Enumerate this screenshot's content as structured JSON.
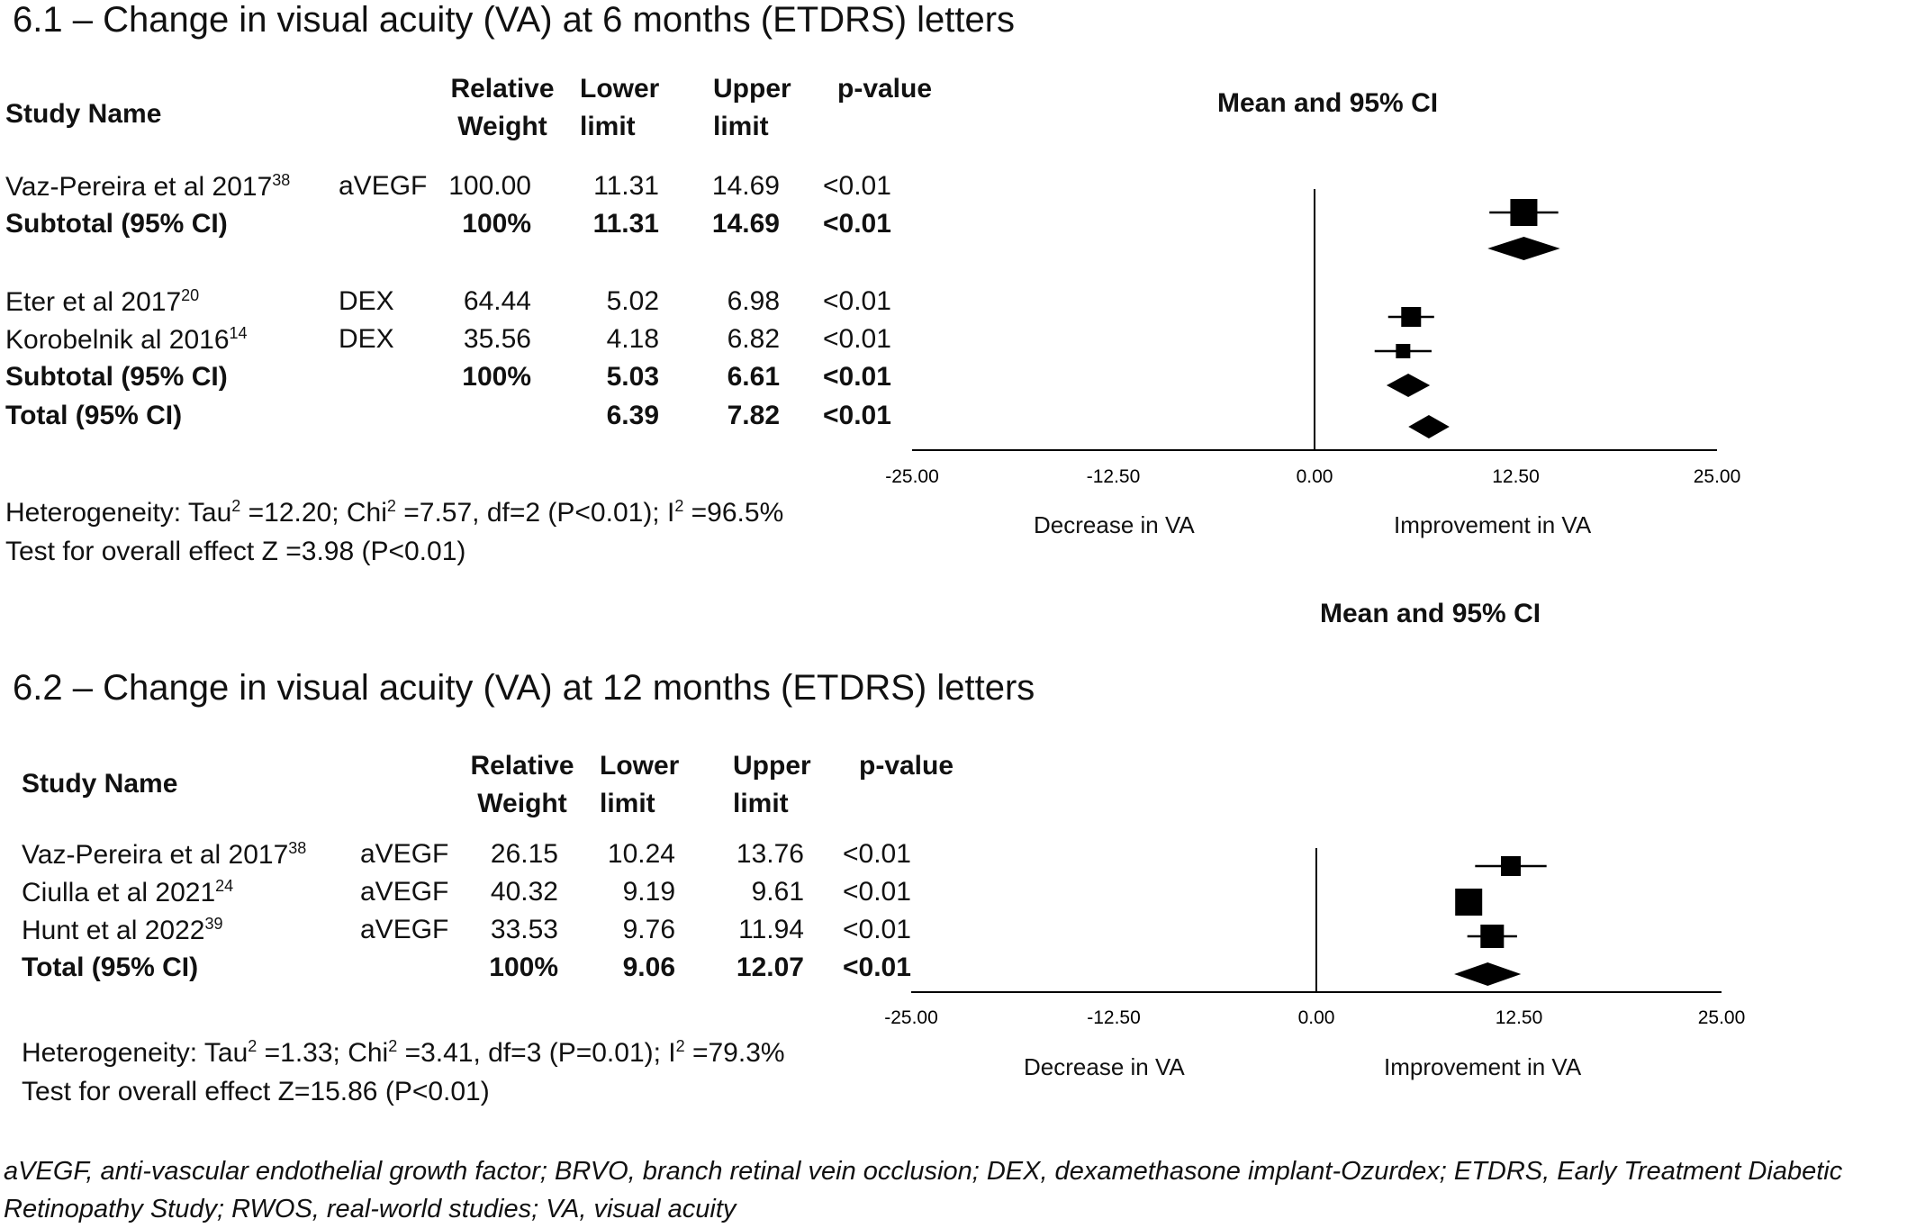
{
  "chart_data": [
    {
      "type": "forest",
      "title": "6.1 – Change in visual acuity (VA) at 6 months (ETDRS) letters",
      "plot_title": "Mean and 95% CI",
      "columns": {
        "study": "Study Name",
        "weight": [
          "Relative",
          "Weight"
        ],
        "lower": [
          "Lower",
          "limit"
        ],
        "upper": [
          "Upper",
          "limit"
        ],
        "p": "p-value"
      },
      "xlim": [
        -25,
        25
      ],
      "ticks": [
        "-25.00",
        "-12.50",
        "0.00",
        "12.50",
        "25.00"
      ],
      "tick_values": [
        -25,
        -12.5,
        0,
        12.5,
        25
      ],
      "left_label": "Decrease in VA",
      "right_label": "Improvement in VA",
      "rows": [
        {
          "study": "Vaz-Pereira et al 2017",
          "ref": "38",
          "group": "aVEGF",
          "weight": "100.00",
          "lower": "11.31",
          "upper": "14.69",
          "p": "<0.01",
          "bold": false,
          "kind": "square",
          "mean": 13.0,
          "lo": 11.31,
          "hi": 14.69,
          "size": 30
        },
        {
          "study": "Subtotal (95% CI)",
          "ref": "",
          "group": "",
          "weight": "100%",
          "lower": "11.31",
          "upper": "14.69",
          "p": "<0.01",
          "bold": true,
          "kind": "diamond",
          "mean": 13.0,
          "lo": 11.31,
          "hi": 14.69
        },
        {
          "spacer": true
        },
        {
          "study": "Eter et al 2017",
          "ref": "20",
          "group": "DEX",
          "weight": "64.44",
          "lower": "5.02",
          "upper": "6.98",
          "p": "<0.01",
          "bold": false,
          "kind": "square",
          "mean": 6.0,
          "lo": 5.02,
          "hi": 6.98,
          "size": 22
        },
        {
          "study": "Korobelnik al 2016",
          "ref": "14",
          "group": "DEX",
          "weight": "35.56",
          "lower": "4.18",
          "upper": "6.82",
          "p": "<0.01",
          "bold": false,
          "kind": "square",
          "mean": 5.5,
          "lo": 4.18,
          "hi": 6.82,
          "size": 16
        },
        {
          "study": "Subtotal (95% CI)",
          "ref": "",
          "group": "",
          "weight": "100%",
          "lower": "5.03",
          "upper": "6.61",
          "p": "<0.01",
          "bold": true,
          "kind": "diamond",
          "mean": 5.82,
          "lo": 5.03,
          "hi": 6.61
        },
        {
          "study": "Total (95% CI)",
          "ref": "",
          "group": "",
          "weight": "",
          "lower": "6.39",
          "upper": "7.82",
          "p": "<0.01",
          "bold": true,
          "kind": "diamond",
          "mean": 7.1,
          "lo": 6.39,
          "hi": 7.82
        }
      ],
      "heterogeneity": {
        "tau_label": "Heterogeneity: Tau",
        "tau_value": " =12.20; Chi",
        "chi_value": " =7.57, df=2 (P<0.01); I",
        "i_value": " =96.5%"
      },
      "overall": "Test for overall effect Z =3.98 (P<0.01)"
    },
    {
      "type": "forest",
      "title": "6.2 – Change in visual acuity (VA) at 12 months (ETDRS) letters",
      "plot_title": "Mean and 95% CI",
      "columns": {
        "study": "Study Name",
        "weight": [
          "Relative",
          "Weight"
        ],
        "lower": [
          "Lower",
          "limit"
        ],
        "upper": [
          "Upper",
          "limit"
        ],
        "p": "p-value"
      },
      "xlim": [
        -25,
        25
      ],
      "ticks": [
        "-25.00",
        "-12.50",
        "0.00",
        "12.50",
        "25.00"
      ],
      "tick_values": [
        -25,
        -12.5,
        0,
        12.5,
        25
      ],
      "left_label": "Decrease in VA",
      "right_label": "Improvement in VA",
      "rows": [
        {
          "study": "Vaz-Pereira et al 2017",
          "ref": "38",
          "group": "aVEGF",
          "weight": "26.15",
          "lower": "10.24",
          "upper": "13.76",
          "p": "<0.01",
          "bold": false,
          "kind": "square",
          "mean": 12.0,
          "lo": 10.24,
          "hi": 13.76,
          "size": 22
        },
        {
          "study": "Ciulla et al 2021",
          "ref": "24",
          "group": "aVEGF",
          "weight": "40.32",
          "lower": "9.19",
          "upper": "9.61",
          "p": "<0.01",
          "bold": false,
          "kind": "square",
          "mean": 9.4,
          "lo": 9.19,
          "hi": 9.61,
          "size": 30
        },
        {
          "study": "Hunt et al 2022",
          "ref": "39",
          "group": "aVEGF",
          "weight": "33.53",
          "lower": "9.76",
          "upper": "11.94",
          "p": "<0.01",
          "bold": false,
          "kind": "square",
          "mean": 10.85,
          "lo": 9.76,
          "hi": 11.94,
          "size": 26
        },
        {
          "study": "Total (95% CI)",
          "ref": "",
          "group": "",
          "weight": "100%",
          "lower": "9.06",
          "upper": "12.07",
          "p": "<0.01",
          "bold": true,
          "kind": "diamond",
          "mean": 10.57,
          "lo": 9.06,
          "hi": 12.07
        }
      ],
      "heterogeneity": {
        "tau_label": "Heterogeneity: Tau",
        "tau_value": " =1.33; Chi",
        "chi_value": " =3.41, df=3 (P=0.01); I",
        "i_value": " =79.3%"
      },
      "overall": "Test for overall effect Z=15.86 (P<0.01)"
    }
  ],
  "footnote": "aVEGF, anti-vascular endothelial growth factor; BRVO, branch retinal vein occlusion; DEX, dexamethasone implant-Ozurdex; ETDRS, Early Treatment Diabetic Retinopathy Study; RWOS, real-world studies; VA, visual acuity",
  "superscript": "2"
}
